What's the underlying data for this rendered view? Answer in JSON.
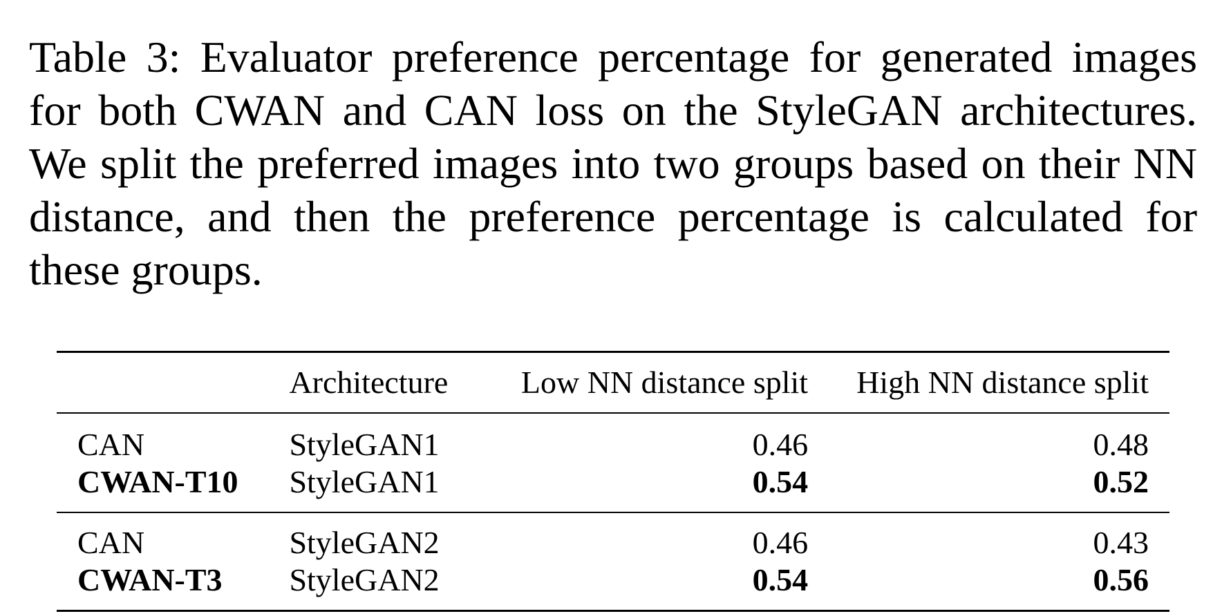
{
  "caption": "Table 3: Evaluator preference percentage for generated images for both CWAN and CAN loss on the StyleGAN architectures. We split the preferred images into two groups based on their NN distance, and then the preference percentage is calculated for these groups.",
  "table": {
    "headers": [
      "",
      "Architecture",
      "Low NN distance split",
      "High NN distance split"
    ],
    "groups": [
      {
        "rows": [
          {
            "method": "CAN",
            "architecture": "StyleGAN1",
            "low": "0.46",
            "high": "0.48",
            "bold": false
          },
          {
            "method": "CWAN-T10",
            "architecture": "StyleGAN1",
            "low": "0.54",
            "high": "0.52",
            "bold": true
          }
        ]
      },
      {
        "rows": [
          {
            "method": "CAN",
            "architecture": "StyleGAN2",
            "low": "0.46",
            "high": "0.43",
            "bold": false
          },
          {
            "method": "CWAN-T3",
            "architecture": "StyleGAN2",
            "low": "0.54",
            "high": "0.56",
            "bold": true
          }
        ]
      }
    ]
  }
}
